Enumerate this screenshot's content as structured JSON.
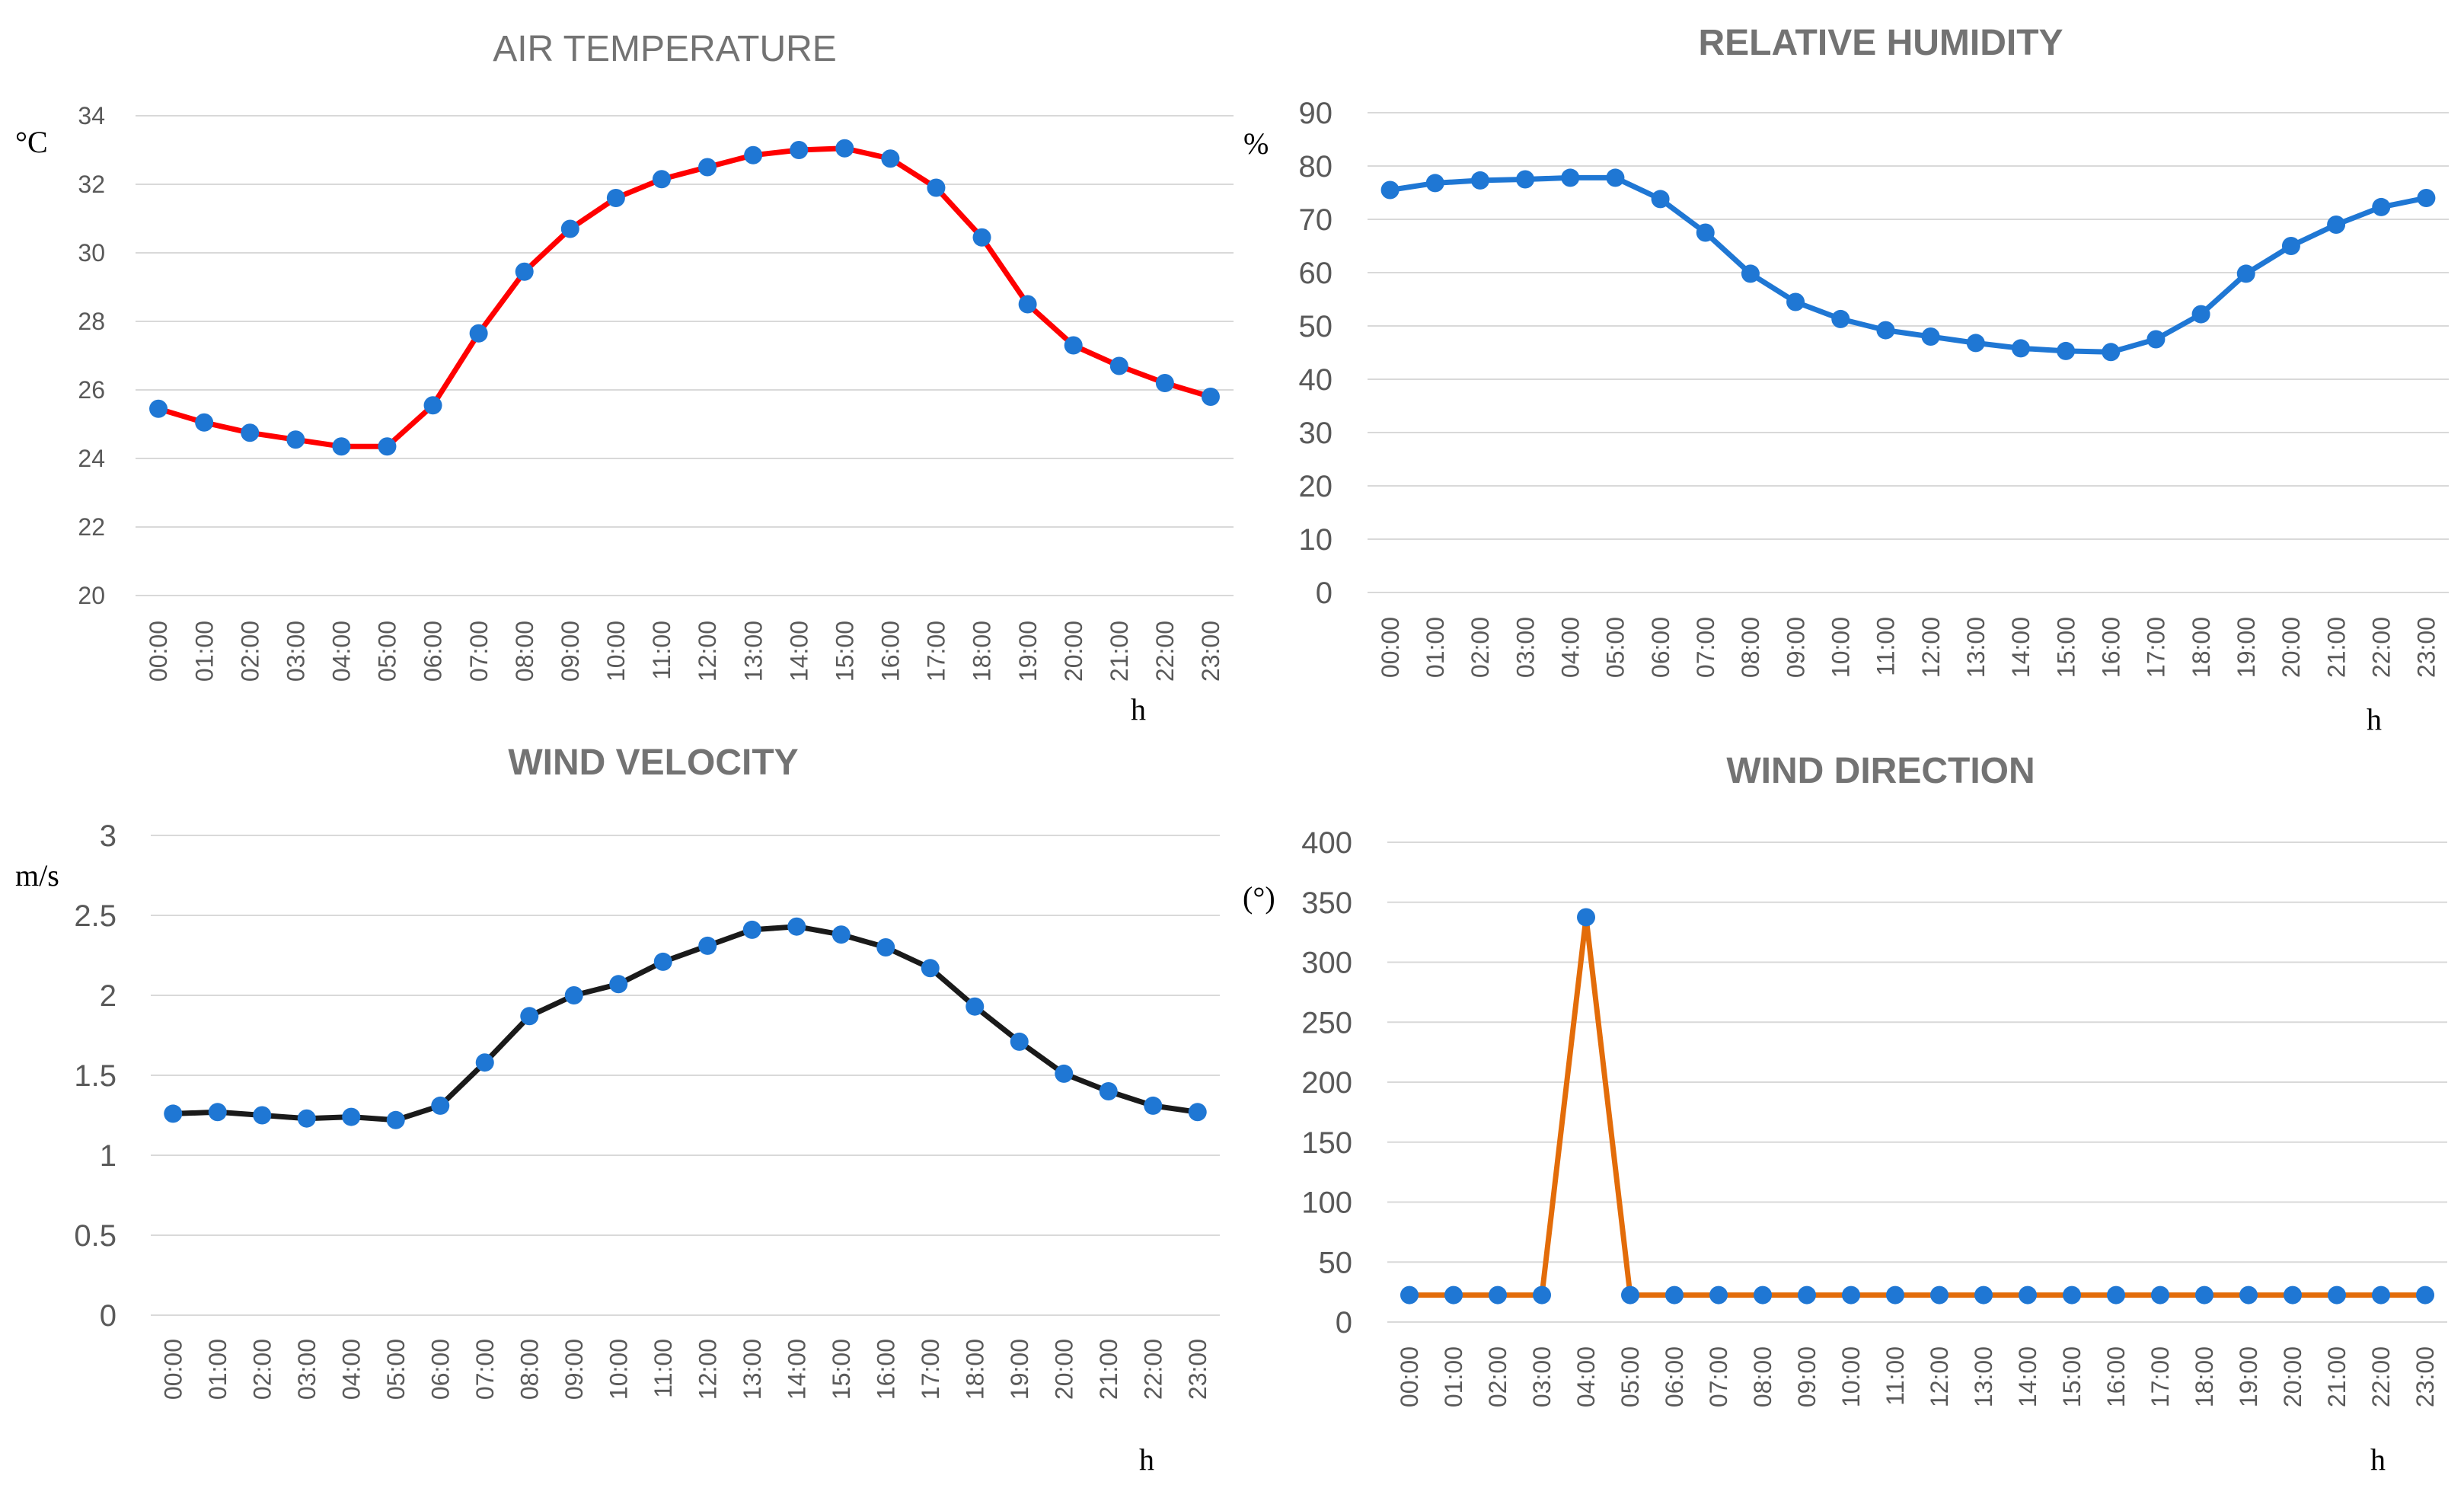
{
  "chart_data": [
    {
      "type": "line",
      "title": "AIR TEMPERATURE",
      "ylabel": "°C",
      "xlabel": "h",
      "ylim": [
        20,
        34
      ],
      "yticks": [
        20,
        22,
        24,
        26,
        28,
        30,
        32,
        34
      ],
      "categories": [
        "00:00",
        "01:00",
        "02:00",
        "03:00",
        "04:00",
        "05:00",
        "06:00",
        "07:00",
        "08:00",
        "09:00",
        "10:00",
        "11:00",
        "12:00",
        "13:00",
        "14:00",
        "15:00",
        "16:00",
        "17:00",
        "18:00",
        "19:00",
        "20:00",
        "21:00",
        "22:00",
        "23:00"
      ],
      "series": [
        {
          "name": "Air temperature",
          "values": [
            25.45,
            25.05,
            24.75,
            24.55,
            24.35,
            24.35,
            25.55,
            27.65,
            29.45,
            30.7,
            31.6,
            32.15,
            32.5,
            32.85,
            33.0,
            33.05,
            32.75,
            31.9,
            30.45,
            28.5,
            27.3,
            26.7,
            26.2,
            25.8
          ],
          "line_color": "#ff0000",
          "marker_color": "#1f77d4"
        }
      ]
    },
    {
      "type": "line",
      "title": "RELATIVE HUMIDITY",
      "ylabel": "%",
      "xlabel": "h",
      "ylim": [
        0,
        90
      ],
      "yticks": [
        0,
        10,
        20,
        30,
        40,
        50,
        60,
        70,
        80,
        90
      ],
      "categories": [
        "00:00",
        "01:00",
        "02:00",
        "03:00",
        "04:00",
        "05:00",
        "06:00",
        "07:00",
        "08:00",
        "09:00",
        "10:00",
        "11:00",
        "12:00",
        "13:00",
        "14:00",
        "15:00",
        "16:00",
        "17:00",
        "18:00",
        "19:00",
        "20:00",
        "21:00",
        "22:00",
        "23:00"
      ],
      "series": [
        {
          "name": "Relative humidity",
          "values": [
            75.5,
            76.8,
            77.3,
            77.5,
            77.8,
            77.8,
            73.8,
            67.5,
            59.8,
            54.5,
            51.3,
            49.2,
            48.0,
            46.8,
            45.8,
            45.3,
            45.1,
            47.5,
            52.2,
            59.8,
            65.0,
            69.0,
            72.3,
            74.0
          ],
          "line_color": "#1f77d4",
          "marker_color": "#1f77d4"
        }
      ]
    },
    {
      "type": "line",
      "title": "WIND VELOCITY",
      "ylabel": "m/s",
      "xlabel": "h",
      "ylim": [
        0,
        3
      ],
      "yticks": [
        "0",
        "0.5",
        "1",
        "1.5",
        "2",
        "2.5",
        "3"
      ],
      "categories": [
        "00:00",
        "01:00",
        "02:00",
        "03:00",
        "04:00",
        "05:00",
        "06:00",
        "07:00",
        "08:00",
        "09:00",
        "10:00",
        "11:00",
        "12:00",
        "13:00",
        "14:00",
        "15:00",
        "16:00",
        "17:00",
        "18:00",
        "19:00",
        "20:00",
        "21:00",
        "22:00",
        "23:00"
      ],
      "series": [
        {
          "name": "Wind velocity",
          "values": [
            1.26,
            1.27,
            1.25,
            1.23,
            1.24,
            1.22,
            1.31,
            1.58,
            1.87,
            2.0,
            2.07,
            2.21,
            2.31,
            2.41,
            2.43,
            2.38,
            2.3,
            2.17,
            1.93,
            1.71,
            1.51,
            1.4,
            1.31,
            1.27
          ],
          "line_color": "#1a1a1a",
          "marker_color": "#1f77d4"
        }
      ]
    },
    {
      "type": "line",
      "title": "WIND DIRECTION",
      "ylabel": "(°)",
      "xlabel": "h",
      "ylim": [
        0,
        400
      ],
      "yticks": [
        0,
        50,
        100,
        150,
        200,
        250,
        300,
        350,
        400
      ],
      "categories": [
        "00:00",
        "01:00",
        "02:00",
        "03:00",
        "04:00",
        "05:00",
        "06:00",
        "07:00",
        "08:00",
        "09:00",
        "10:00",
        "11:00",
        "12:00",
        "13:00",
        "14:00",
        "15:00",
        "16:00",
        "17:00",
        "18:00",
        "19:00",
        "20:00",
        "21:00",
        "22:00",
        "23:00"
      ],
      "series": [
        {
          "name": "Wind direction",
          "values": [
            22.5,
            22.5,
            22.5,
            22.5,
            337.5,
            22.5,
            22.5,
            22.5,
            22.5,
            22.5,
            22.5,
            22.5,
            22.5,
            22.5,
            22.5,
            22.5,
            22.5,
            22.5,
            22.5,
            22.5,
            22.5,
            22.5,
            22.5,
            22.5
          ],
          "line_color": "#e36c09",
          "marker_color": "#1f77d4"
        }
      ]
    }
  ]
}
